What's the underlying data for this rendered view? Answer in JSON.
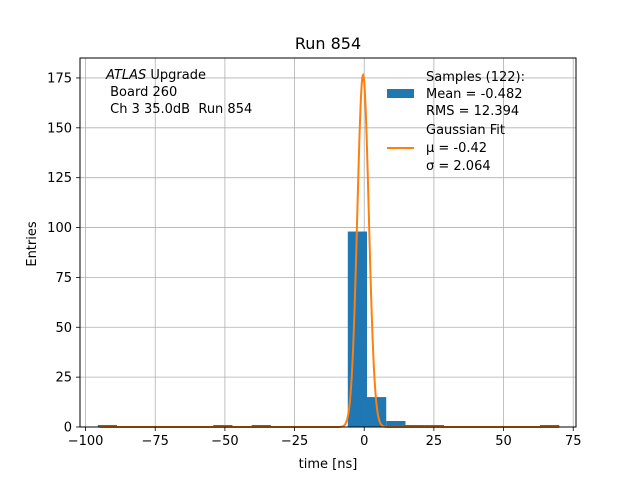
{
  "chart_data": {
    "type": "bar",
    "title": "Run 854",
    "xlabel": "time [ns]",
    "ylabel": "Entries",
    "xlim": [
      -102,
      76
    ],
    "ylim": [
      0,
      185
    ],
    "grid": true,
    "x_ticks": [
      -100,
      -75,
      -50,
      -25,
      0,
      25,
      50,
      75
    ],
    "x_tick_labels": [
      "−100",
      "−75",
      "−50",
      "−25",
      "0",
      "25",
      "50",
      "75"
    ],
    "y_ticks": [
      0,
      25,
      50,
      75,
      100,
      125,
      150,
      175
    ],
    "y_tick_labels": [
      "0",
      "25",
      "50",
      "75",
      "100",
      "125",
      "150",
      "175"
    ],
    "annotation": {
      "atlas": "ATLAS",
      "line1_rest": " Upgrade",
      "line2": " Board 260",
      "line3": " Ch 3 35.0dB  Run 854"
    },
    "legend": {
      "placement": "top-right",
      "hist_title": "Samples (122):",
      "hist_mean": "Mean = -0.482",
      "hist_rms": "RMS = 12.394",
      "fit_title": "Gaussian Fit",
      "fit_mu": "μ = -0.42",
      "fit_sigma": "σ = 2.064"
    },
    "series": [
      {
        "kind": "histogram",
        "color": "#1f77b4",
        "bin_width": 6.9,
        "bins": [
          {
            "x0": -95.6,
            "x1": -88.7,
            "count": 1
          },
          {
            "x0": -54.2,
            "x1": -47.3,
            "count": 1
          },
          {
            "x0": -40.4,
            "x1": -33.5,
            "count": 1
          },
          {
            "x0": -12.8,
            "x1": -5.9,
            "count": 0
          },
          {
            "x0": -5.9,
            "x1": 1.0,
            "count": 98
          },
          {
            "x0": 1.0,
            "x1": 7.9,
            "count": 15
          },
          {
            "x0": 7.9,
            "x1": 14.8,
            "count": 3
          },
          {
            "x0": 14.8,
            "x1": 21.7,
            "count": 1
          },
          {
            "x0": 21.7,
            "x1": 28.6,
            "count": 1
          },
          {
            "x0": 63.1,
            "x1": 70.0,
            "count": 1
          }
        ]
      },
      {
        "kind": "gaussian",
        "color": "#ff7f0e",
        "mu": -0.42,
        "sigma": 2.064,
        "amplitude": 176.5,
        "x_range": [
          -95,
          70
        ]
      }
    ]
  }
}
